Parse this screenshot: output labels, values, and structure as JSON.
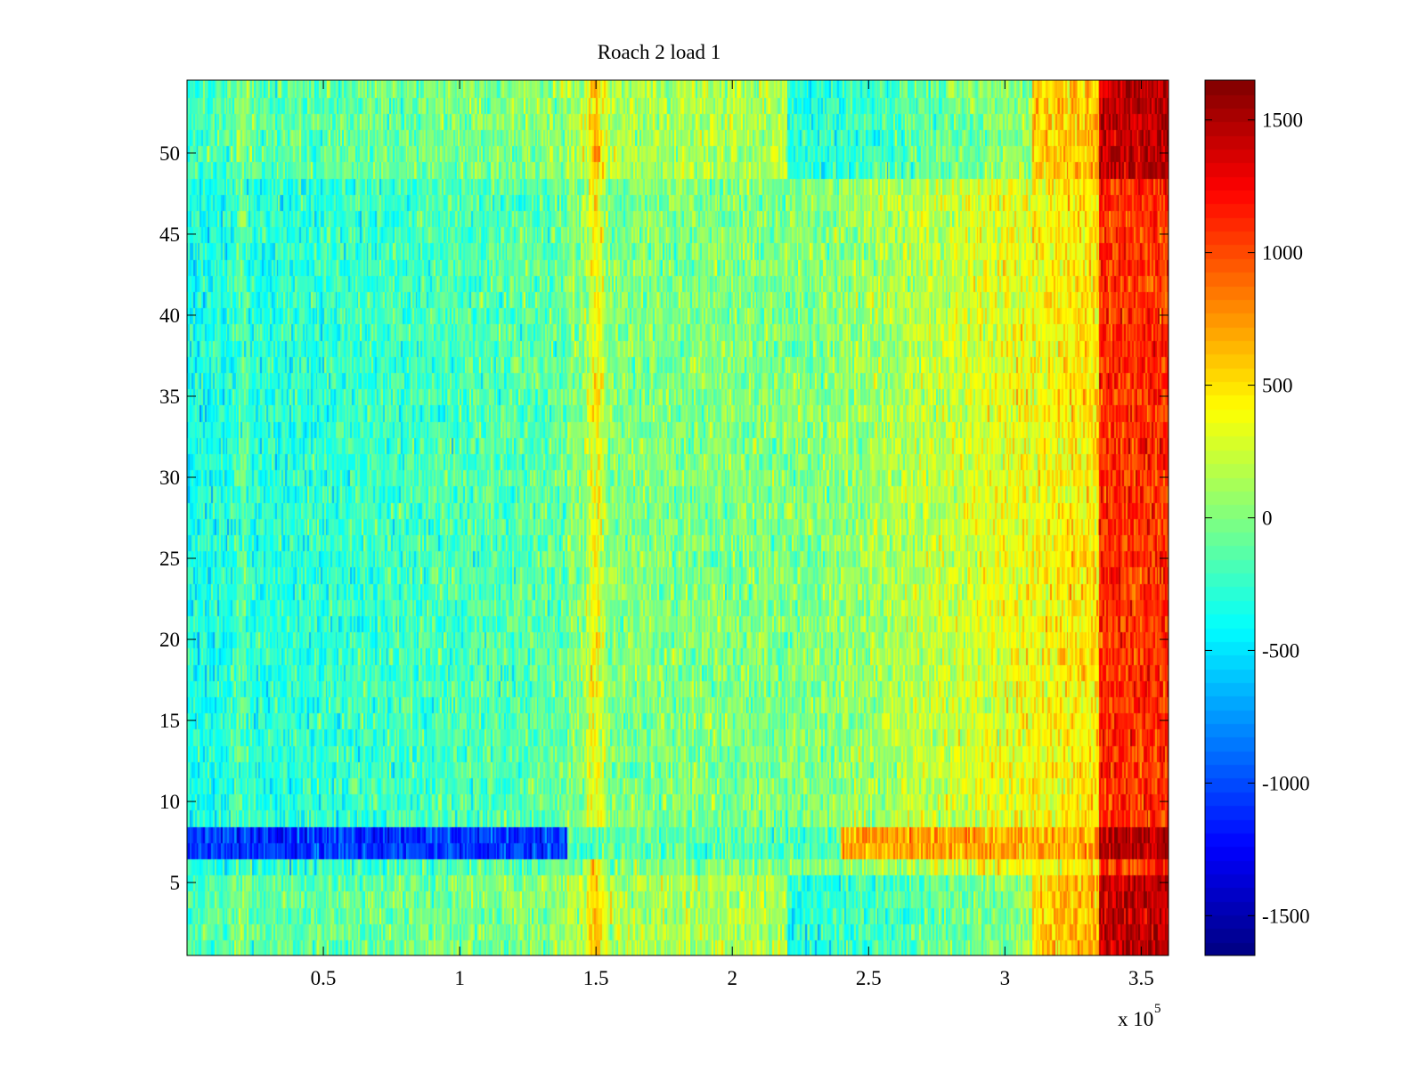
{
  "chart_data": {
    "type": "heatmap",
    "title": "Roach 2 load 1",
    "xlabel": "",
    "ylabel": "",
    "x_exponent_label": "x 10",
    "x_exponent": "5",
    "xlim": [
      0,
      3.6
    ],
    "ylim": [
      0.5,
      54.5
    ],
    "x_ticks": [
      "0.5",
      "1",
      "1.5",
      "2",
      "2.5",
      "3",
      "3.5"
    ],
    "y_ticks": [
      "5",
      "10",
      "15",
      "20",
      "25",
      "30",
      "35",
      "40",
      "45",
      "50"
    ],
    "colorbar": {
      "colormap": "jet",
      "clim": [
        -1650,
        1650
      ],
      "ticks": [
        "1500",
        "1000",
        "500",
        "0",
        "-500",
        "-1000",
        "-1500"
      ]
    },
    "rows": 54,
    "columns": 600,
    "pattern": {
      "left_region_mean": -350,
      "mid_region_mean": 0,
      "right_region_mean": 500,
      "far_right_mean": 1100,
      "hot_columns_x": [
        1.5,
        3.45
      ],
      "cold_band_rows": [
        7,
        8
      ],
      "warm_band_rows": [
        1,
        2,
        3,
        4,
        5,
        49,
        50,
        51,
        52,
        53,
        54
      ]
    }
  }
}
